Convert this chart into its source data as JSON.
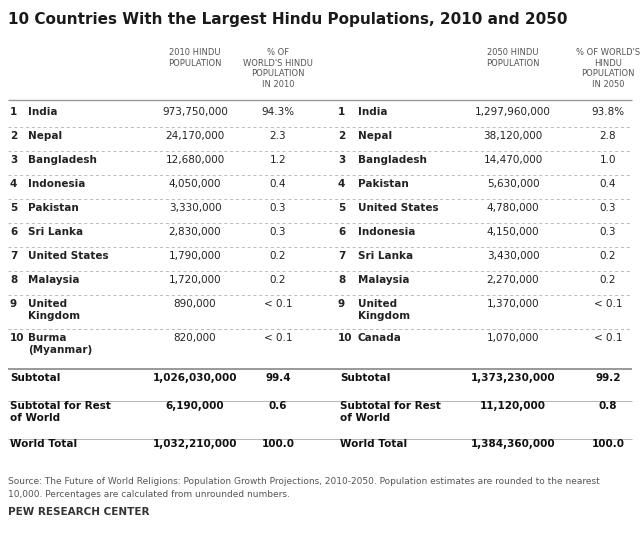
{
  "title": "10 Countries With the Largest Hindu Populations, 2010 and 2050",
  "header_2010_col1": "2010 HINDU\nPOPULATION",
  "header_2010_col2": "% OF\nWORLD'S HINDU\nPOPULATION\nIN 2010",
  "header_2050_col1": "2050 HINDU\nPOPULATION",
  "header_2050_col2": "% OF WORLD'S\nHINDU\nPOPULATION\nIN 2050",
  "rows_2010": [
    [
      "1",
      "India",
      "973,750,000",
      "94.3%"
    ],
    [
      "2",
      "Nepal",
      "24,170,000",
      "2.3"
    ],
    [
      "3",
      "Bangladesh",
      "12,680,000",
      "1.2"
    ],
    [
      "4",
      "Indonesia",
      "4,050,000",
      "0.4"
    ],
    [
      "5",
      "Pakistan",
      "3,330,000",
      "0.3"
    ],
    [
      "6",
      "Sri Lanka",
      "2,830,000",
      "0.3"
    ],
    [
      "7",
      "United States",
      "1,790,000",
      "0.2"
    ],
    [
      "8",
      "Malaysia",
      "1,720,000",
      "0.2"
    ],
    [
      "9",
      "United\nKingdom",
      "890,000",
      "< 0.1"
    ],
    [
      "10",
      "Burma\n(Myanmar)",
      "820,000",
      "< 0.1"
    ]
  ],
  "rows_2050": [
    [
      "1",
      "India",
      "1,297,960,000",
      "93.8%"
    ],
    [
      "2",
      "Nepal",
      "38,120,000",
      "2.8"
    ],
    [
      "3",
      "Bangladesh",
      "14,470,000",
      "1.0"
    ],
    [
      "4",
      "Pakistan",
      "5,630,000",
      "0.4"
    ],
    [
      "5",
      "United States",
      "4,780,000",
      "0.3"
    ],
    [
      "6",
      "Indonesia",
      "4,150,000",
      "0.3"
    ],
    [
      "7",
      "Sri Lanka",
      "3,430,000",
      "0.2"
    ],
    [
      "8",
      "Malaysia",
      "2,270,000",
      "0.2"
    ],
    [
      "9",
      "United\nKingdom",
      "1,370,000",
      "< 0.1"
    ],
    [
      "10",
      "Canada",
      "1,070,000",
      "< 0.1"
    ]
  ],
  "summary_left": [
    [
      "Subtotal",
      "1,026,030,000",
      "99.4"
    ],
    [
      "Subtotal for Rest\nof World",
      "6,190,000",
      "0.6"
    ],
    [
      "World Total",
      "1,032,210,000",
      "100.0"
    ]
  ],
  "summary_right": [
    [
      "Subtotal",
      "1,373,230,000",
      "99.2"
    ],
    [
      "Subtotal for Rest\nof World",
      "11,120,000",
      "0.8"
    ],
    [
      "World Total",
      "1,384,360,000",
      "100.0"
    ]
  ],
  "source_line1": "Source: The Future of World Religions: Population Growth Projections, 2010-2050. Population estimates are rounded to the nearest",
  "source_line2": "10,000. Percentages are calculated from unrounded numbers.",
  "footer": "PEW RESEARCH CENTER",
  "bg_color": "#ffffff",
  "summary_bg": "#eeebe4",
  "title_color": "#1a1a1a",
  "body_color": "#222222",
  "header_color": "#555555",
  "source_color": "#555555",
  "line_color_solid": "#999999",
  "line_color_dot": "#bbbbbb",
  "summary_label_color": "#111111"
}
